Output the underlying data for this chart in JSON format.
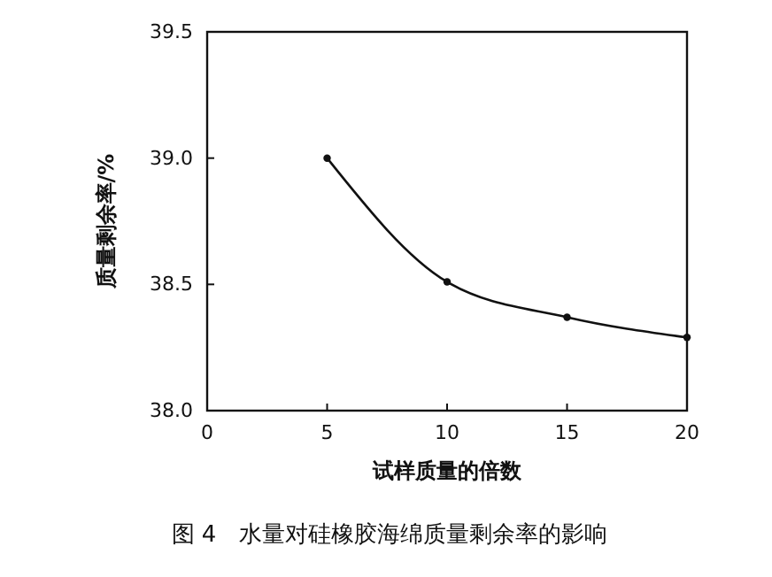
{
  "chart_data": {
    "type": "line",
    "title": "图 4　水量对硅橡胶海绵质量剩余率的影响",
    "xlabel": "试样质量的倍数",
    "ylabel": "质量剩余率/%",
    "x": [
      5,
      10,
      15,
      20
    ],
    "values": [
      39.0,
      38.51,
      38.37,
      38.29
    ],
    "color": "#111111",
    "marker": "circle",
    "line_style": "solid",
    "grid": false,
    "xlim": [
      0,
      20
    ],
    "xticks": [
      0,
      5,
      10,
      15,
      20
    ],
    "ylim": [
      38.0,
      39.5
    ],
    "yticks": [
      {
        "value": 38.0,
        "label": "38.0"
      },
      {
        "value": 38.5,
        "label": "38.5"
      },
      {
        "value": 39.0,
        "label": "39.0"
      },
      {
        "value": 39.5,
        "label": "39.5"
      }
    ]
  }
}
